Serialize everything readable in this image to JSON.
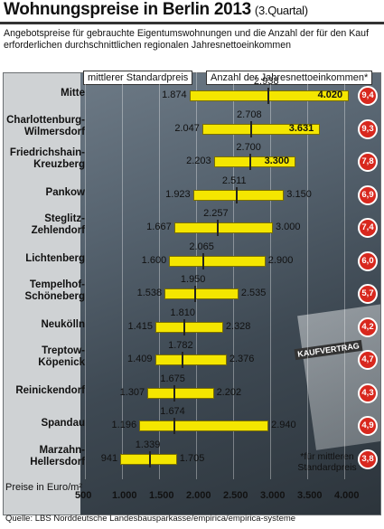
{
  "header": {
    "title": "Wohnungspreise in Berlin 2013",
    "subtitle": "(3.Quartal)",
    "intro": "Angebotspreise für gebrauchte Eigentumswohnungen und die Anzahl der für den Kauf erforderlichen durchschnittlichen regionalen Jahresnettoeinkommen"
  },
  "legend": {
    "median": "mittlerer Standardpreis",
    "income": "Anzahl der Jahresnettoeinkommen*"
  },
  "footnote": "*für mittleren Standardpreis",
  "source": "Quelle: LBS Norddeutsche Landesbausparkasse/empirica/empirica-systeme",
  "photo_label": "KAUFVERTRAG",
  "chart_data": {
    "type": "bar",
    "title": "Wohnungspreise in Berlin 2013",
    "ylabel": "Preise in Euro/m²",
    "xlim": [
      500,
      4000
    ],
    "xticks": [
      "500",
      "1.000",
      "1.500",
      "2.000",
      "2.500",
      "3.000",
      "3.500",
      "4.000"
    ],
    "categories": [
      {
        "name": "Mitte",
        "min": 1874,
        "median": 2938,
        "max": 4020,
        "min_label": "1.874",
        "median_label": "2.938",
        "max_label": "4.020",
        "income_years": "9,4",
        "hi": true
      },
      {
        "name": "Charlottenburg-Wilmersdorf",
        "min": 2047,
        "median": 2708,
        "max": 3631,
        "min_label": "2.047",
        "median_label": "2.708",
        "max_label": "3.631",
        "income_years": "9,3",
        "hi": true
      },
      {
        "name": "Friedrichshain-Kreuzberg",
        "min": 2203,
        "median": 2700,
        "max": 3300,
        "min_label": "2.203",
        "median_label": "2.700",
        "max_label": "3.300",
        "income_years": "7,8",
        "hi": true
      },
      {
        "name": "Pankow",
        "min": 1923,
        "median": 2511,
        "max": 3150,
        "min_label": "1.923",
        "median_label": "2.511",
        "max_label": "3.150",
        "income_years": "6,9",
        "hi": false
      },
      {
        "name": "Steglitz-Zehlendorf",
        "min": 1667,
        "median": 2257,
        "max": 3000,
        "min_label": "1.667",
        "median_label": "2.257",
        "max_label": "3.000",
        "income_years": "7,4",
        "hi": false
      },
      {
        "name": "Lichtenberg",
        "min": 1600,
        "median": 2065,
        "max": 2900,
        "min_label": "1.600",
        "median_label": "2.065",
        "max_label": "2.900",
        "income_years": "6,0",
        "hi": false
      },
      {
        "name": "Tempelhof-Schöneberg",
        "min": 1538,
        "median": 1950,
        "max": 2535,
        "min_label": "1.538",
        "median_label": "1.950",
        "max_label": "2.535",
        "income_years": "5,7",
        "hi": false
      },
      {
        "name": "Neukölln",
        "min": 1415,
        "median": 1810,
        "max": 2328,
        "min_label": "1.415",
        "median_label": "1.810",
        "max_label": "2.328",
        "income_years": "4,2",
        "hi": false
      },
      {
        "name": "Treptow-Köpenick",
        "min": 1409,
        "median": 1782,
        "max": 2376,
        "min_label": "1.409",
        "median_label": "1.782",
        "max_label": "2.376",
        "income_years": "4,7",
        "hi": false
      },
      {
        "name": "Reinickendorf",
        "min": 1307,
        "median": 1675,
        "max": 2202,
        "min_label": "1.307",
        "median_label": "1.675",
        "max_label": "2.202",
        "income_years": "4,3",
        "hi": false
      },
      {
        "name": "Spandau",
        "min": 1196,
        "median": 1674,
        "max": 2940,
        "min_label": "1.196",
        "median_label": "1.674",
        "max_label": "2.940",
        "income_years": "4,9",
        "hi": false
      },
      {
        "name": "Marzahn-Hellersdorf",
        "min": 941,
        "median": 1339,
        "max": 1705,
        "min_label": "941",
        "median_label": "1.339",
        "max_label": "1.705",
        "income_years": "3,8",
        "hi": false
      }
    ],
    "colors": {
      "bar": "#f4e600",
      "badge": "#d8281e",
      "median_marker": "#222222"
    }
  }
}
